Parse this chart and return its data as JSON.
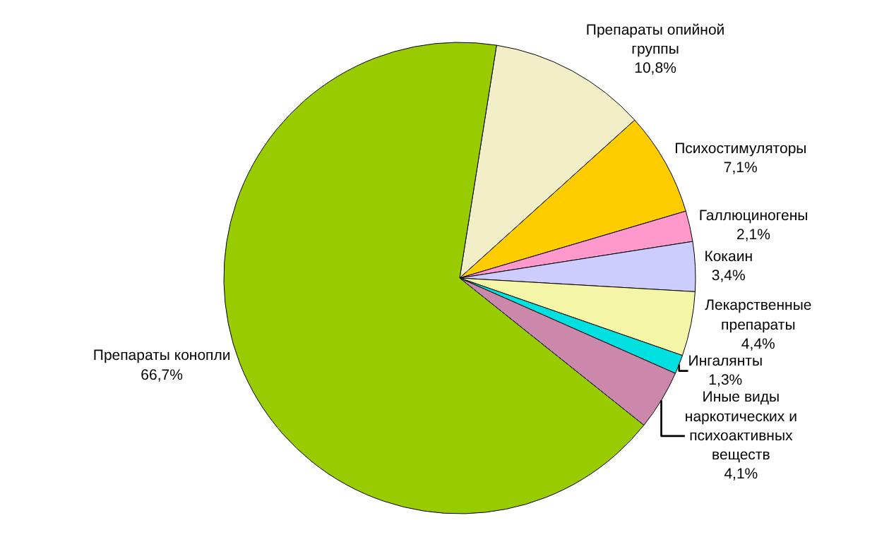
{
  "chart_data": {
    "type": "pie",
    "categories": [
      "Препараты опийной\nгруппы",
      "Психостимуляторы",
      "Галлюциногены",
      "Кокаин",
      "Лекарственные\nпрепараты",
      "Ингалянты",
      "Иные виды\nнаркотических и\nпсихоактивных\nвеществ",
      "Препараты конопли"
    ],
    "values": [
      10.8,
      7.1,
      2.1,
      3.4,
      4.4,
      1.3,
      4.1,
      66.7
    ],
    "value_labels": [
      "10,8%",
      "7,1%",
      "2,1%",
      "3,4%",
      "4,4%",
      "1,3%",
      "4,1%",
      "66,7%"
    ],
    "colors": [
      "#f2efc8",
      "#ffcc00",
      "#ff99cc",
      "#ccccff",
      "#f5f5a8",
      "#00e0e0",
      "#cc88aa",
      "#99cc00"
    ]
  }
}
